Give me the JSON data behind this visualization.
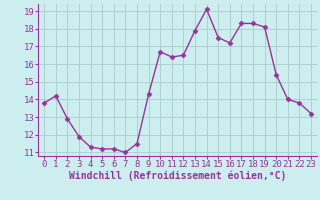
{
  "x": [
    0,
    1,
    2,
    3,
    4,
    5,
    6,
    7,
    8,
    9,
    10,
    11,
    12,
    13,
    14,
    15,
    16,
    17,
    18,
    19,
    20,
    21,
    22,
    23
  ],
  "y": [
    13.8,
    14.2,
    12.9,
    11.9,
    11.3,
    11.2,
    11.2,
    11.0,
    11.5,
    14.3,
    16.7,
    16.4,
    16.5,
    17.9,
    19.1,
    17.5,
    17.2,
    18.3,
    18.3,
    18.1,
    15.4,
    14.0,
    13.8,
    13.2
  ],
  "line_color": "#993399",
  "marker": "D",
  "marker_size": 2.5,
  "bg_color": "#cceeee",
  "grid_color": "#aacccc",
  "xlabel": "Windchill (Refroidissement éolien,°C)",
  "xlabel_fontsize": 7,
  "ylim": [
    10.8,
    19.4
  ],
  "xlim": [
    -0.5,
    23.5
  ],
  "yticks": [
    11,
    12,
    13,
    14,
    15,
    16,
    17,
    18,
    19
  ],
  "xticks": [
    0,
    1,
    2,
    3,
    4,
    5,
    6,
    7,
    8,
    9,
    10,
    11,
    12,
    13,
    14,
    15,
    16,
    17,
    18,
    19,
    20,
    21,
    22,
    23
  ],
  "tick_fontsize": 6.5,
  "tick_color": "#993399",
  "axis_color": "#993399",
  "linewidth": 1.0
}
